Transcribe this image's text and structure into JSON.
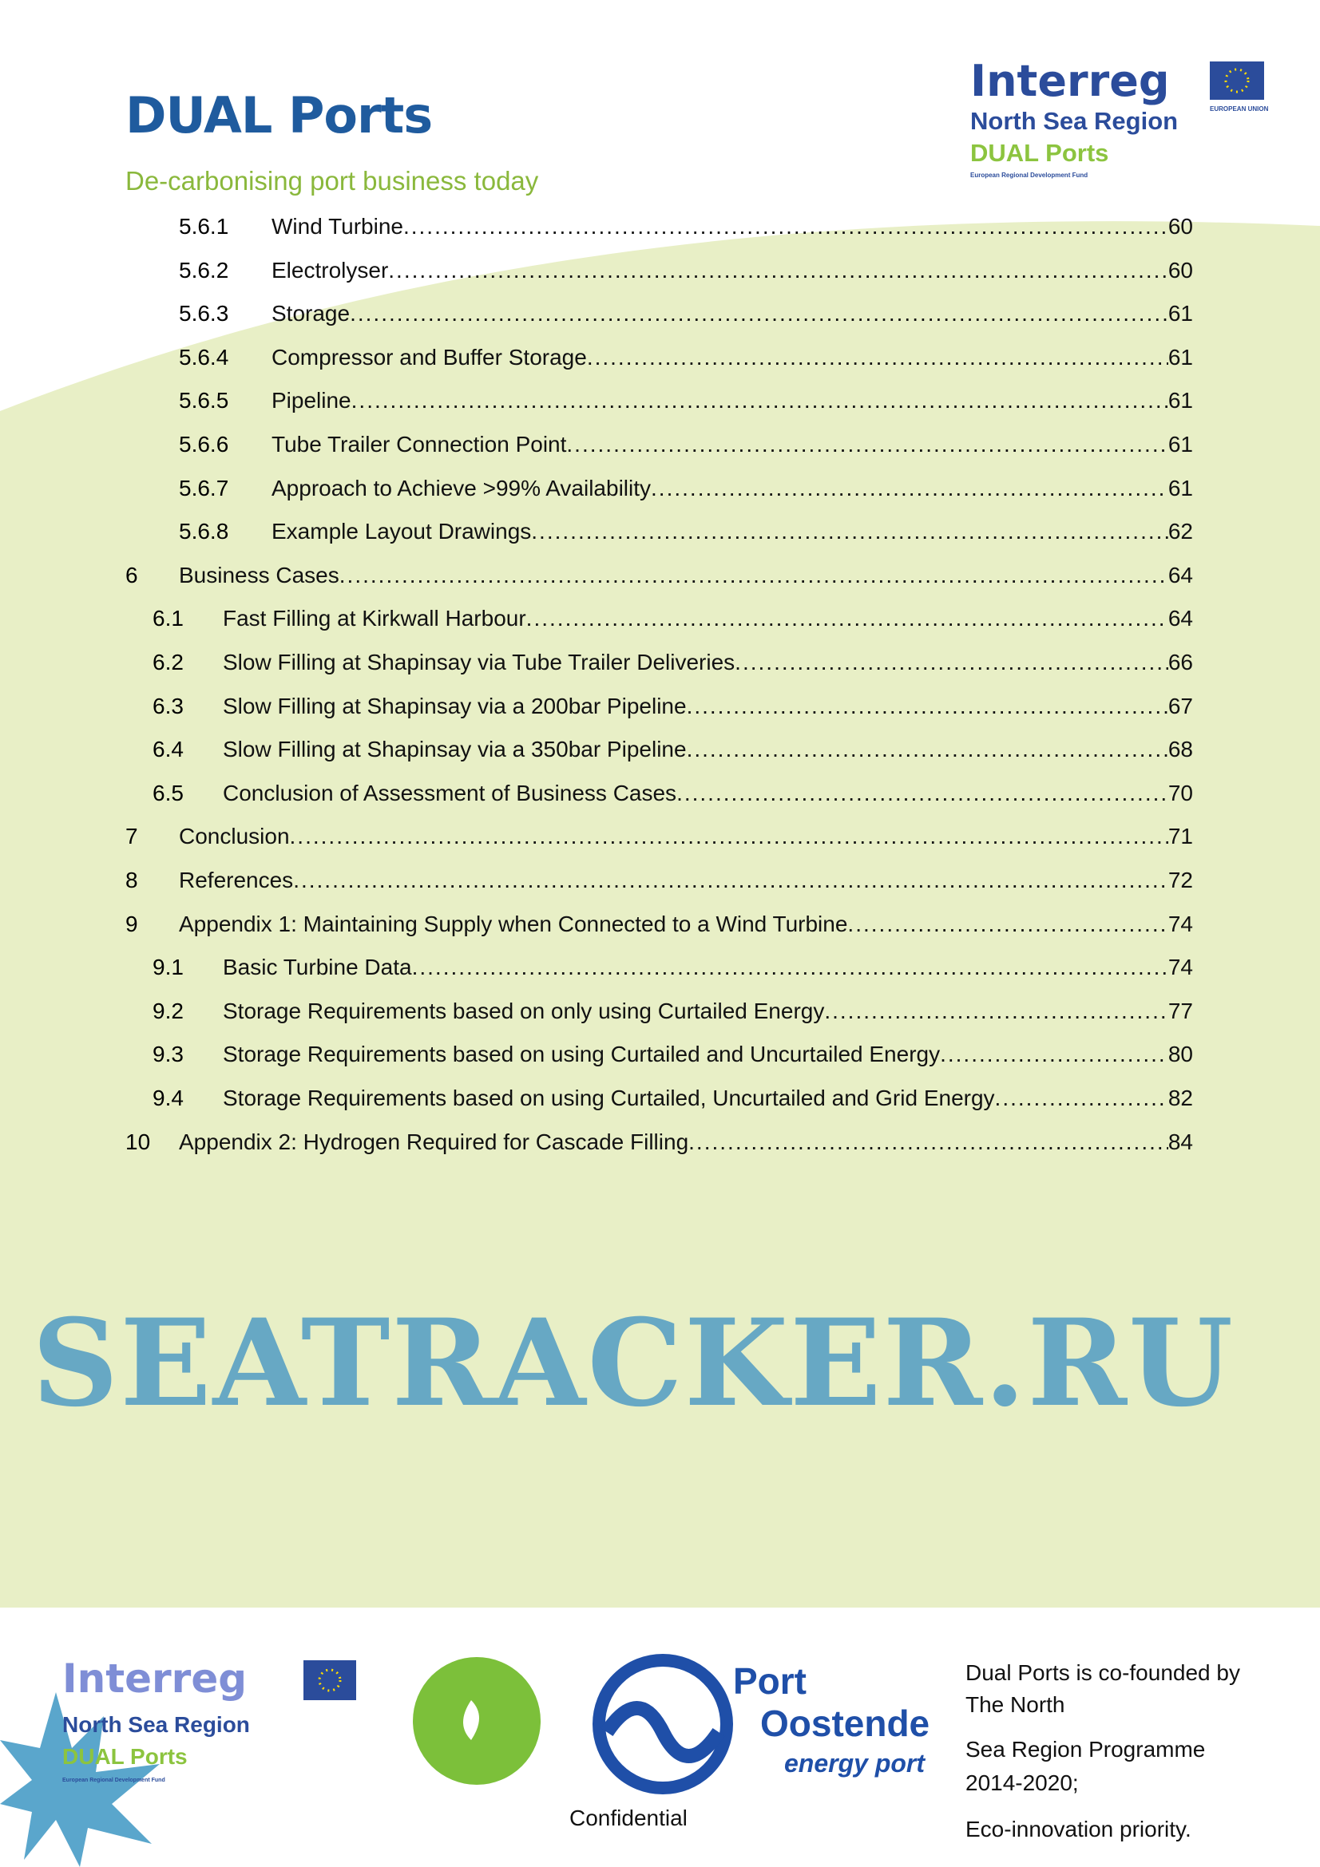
{
  "header": {
    "title": "DUAL Ports",
    "subtitle": "De-carbonising port business today",
    "logo": {
      "line1": "Interreg",
      "line2": "North Sea Region",
      "line3": "DUAL Ports",
      "line4": "European Regional Development Fund",
      "eu": "EUROPEAN UNION"
    }
  },
  "toc": [
    {
      "level": 3,
      "number": "5.6.1",
      "title": "Wind Turbine",
      "page": "60"
    },
    {
      "level": 3,
      "number": "5.6.2",
      "title": "Electrolyser",
      "page": "60"
    },
    {
      "level": 3,
      "number": "5.6.3",
      "title": "Storage",
      "page": "61"
    },
    {
      "level": 3,
      "number": "5.6.4",
      "title": "Compressor and Buffer Storage",
      "page": "61"
    },
    {
      "level": 3,
      "number": "5.6.5",
      "title": "Pipeline",
      "page": "61"
    },
    {
      "level": 3,
      "number": "5.6.6",
      "title": "Tube Trailer Connection Point",
      "page": "61"
    },
    {
      "level": 3,
      "number": "5.6.7",
      "title": "Approach to Achieve >99% Availability",
      "page": "61"
    },
    {
      "level": 3,
      "number": "5.6.8",
      "title": "Example Layout Drawings",
      "page": "62"
    },
    {
      "level": 1,
      "number": "6",
      "title": "Business Cases",
      "page": "64"
    },
    {
      "level": 2,
      "number": "6.1",
      "title": "Fast Filling at Kirkwall Harbour",
      "page": "64"
    },
    {
      "level": 2,
      "number": "6.2",
      "title": "Slow Filling at Shapinsay via Tube Trailer Deliveries",
      "page": "66"
    },
    {
      "level": 2,
      "number": "6.3",
      "title": "Slow Filling at Shapinsay via a 200bar Pipeline",
      "page": "67"
    },
    {
      "level": 2,
      "number": "6.4",
      "title": "Slow Filling at Shapinsay via a 350bar Pipeline",
      "page": "68"
    },
    {
      "level": 2,
      "number": "6.5",
      "title": "Conclusion of Assessment of Business Cases",
      "page": "70"
    },
    {
      "level": 1,
      "number": "7",
      "title": "Conclusion",
      "page": "71"
    },
    {
      "level": 1,
      "number": "8",
      "title": "References",
      "page": "72"
    },
    {
      "level": 1,
      "number": "9",
      "title": "Appendix 1: Maintaining Supply when Connected to a Wind Turbine",
      "page": "74"
    },
    {
      "level": 2,
      "number": "9.1",
      "title": "Basic Turbine Data",
      "page": "74"
    },
    {
      "level": 2,
      "number": "9.2",
      "title": "Storage Requirements based on only using Curtailed Energy",
      "page": "77"
    },
    {
      "level": 2,
      "number": "9.3",
      "title": "Storage Requirements based on using Curtailed and Uncurtailed Energy",
      "page": "80"
    },
    {
      "level": 2,
      "number": "9.4",
      "title": "Storage Requirements based on using Curtailed, Uncurtailed and Grid Energy",
      "page": "82"
    },
    {
      "level": 1,
      "number": "10",
      "title": "Appendix 2: Hydrogen Required for Cascade Filling",
      "page": "84"
    }
  ],
  "footer": {
    "confidential": "Confidential",
    "cofounded": [
      "Dual Ports is co-founded by",
      "The North",
      "Sea Region Programme",
      "2014-2020;",
      "Eco-innovation priority."
    ],
    "port_logo": {
      "line1": "Port",
      "line2": "Oostende",
      "line3": "energy port"
    },
    "watermark": "SEATRACKER.RU"
  },
  "colors": {
    "title": "#1f5b9e",
    "subtitle": "#8ab83c",
    "background_green": "#e8efc6"
  }
}
